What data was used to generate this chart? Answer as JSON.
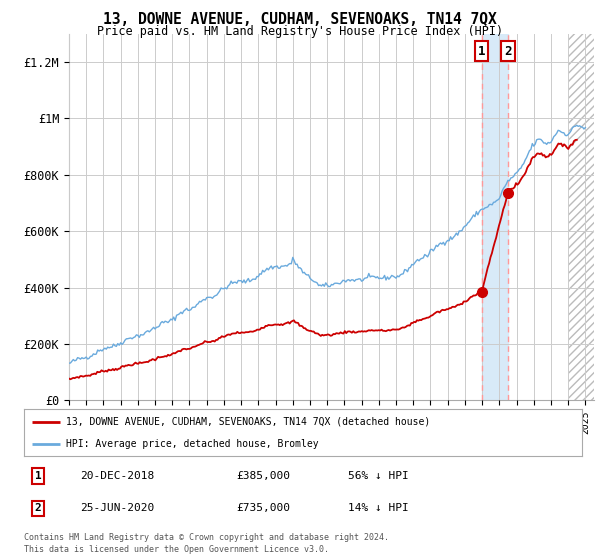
{
  "title": "13, DOWNE AVENUE, CUDHAM, SEVENOAKS, TN14 7QX",
  "subtitle": "Price paid vs. HM Land Registry's House Price Index (HPI)",
  "ylabel_ticks": [
    "£0",
    "£200K",
    "£400K",
    "£600K",
    "£800K",
    "£1M",
    "£1.2M"
  ],
  "ytick_values": [
    0,
    200000,
    400000,
    600000,
    800000,
    1000000,
    1200000
  ],
  "ylim": [
    0,
    1300000
  ],
  "xlim_start": 1995.0,
  "xlim_end": 2025.5,
  "sale1_year": 2018.97,
  "sale1_price": 385000,
  "sale1_label": "1",
  "sale1_date": "20-DEC-2018",
  "sale1_text": "£385,000",
  "sale1_pct": "56% ↓ HPI",
  "sale2_year": 2020.49,
  "sale2_price": 735000,
  "sale2_label": "2",
  "sale2_date": "25-JUN-2020",
  "sale2_text": "£735,000",
  "sale2_pct": "14% ↓ HPI",
  "legend_line1": "13, DOWNE AVENUE, CUDHAM, SEVENOAKS, TN14 7QX (detached house)",
  "legend_line2": "HPI: Average price, detached house, Bromley",
  "footer1": "Contains HM Land Registry data © Crown copyright and database right 2024.",
  "footer2": "This data is licensed under the Open Government Licence v3.0.",
  "hpi_color": "#6aaadd",
  "price_color": "#cc0000",
  "shade_color": "#d8eaf8",
  "grid_color": "#cccccc",
  "bg_color": "#ffffff",
  "hatch_start": 2024.0
}
